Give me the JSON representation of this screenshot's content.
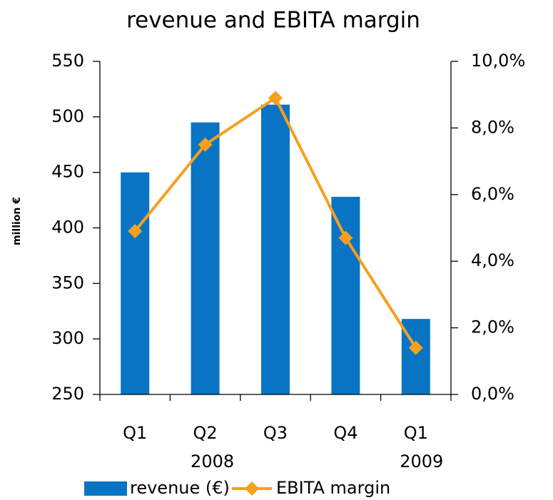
{
  "chart_data": {
    "type": "bar",
    "title": "revenue and EBITA margin",
    "y_label": "million €",
    "categories": [
      "Q1",
      "Q2",
      "Q3",
      "Q4",
      "Q1"
    ],
    "category_groups": [
      {
        "name": "2008",
        "count": 4
      },
      {
        "name": "2009",
        "count": 1
      }
    ],
    "series": [
      {
        "name": "revenue (€)",
        "type": "bar",
        "color": "#0a74c4",
        "values": [
          450,
          495,
          511,
          428,
          318
        ]
      },
      {
        "name": "EBITA margin",
        "type": "line",
        "axis": "y2",
        "color": "#f5a01e",
        "values": [
          4.9,
          7.5,
          8.9,
          4.7,
          1.4
        ]
      }
    ],
    "ylim": [
      250,
      550
    ],
    "yticks": [
      250,
      300,
      350,
      400,
      450,
      500,
      550
    ],
    "y2lim": [
      0,
      10
    ],
    "y2ticks": [
      {
        "value": 0,
        "label": "0,0%"
      },
      {
        "value": 2,
        "label": "2,0%"
      },
      {
        "value": 4,
        "label": "4,0%"
      },
      {
        "value": 6,
        "label": "6,0%"
      },
      {
        "value": 8,
        "label": "8,0%"
      },
      {
        "value": 10,
        "label": "10,0%"
      }
    ],
    "grid": false,
    "legend": "bottom"
  }
}
